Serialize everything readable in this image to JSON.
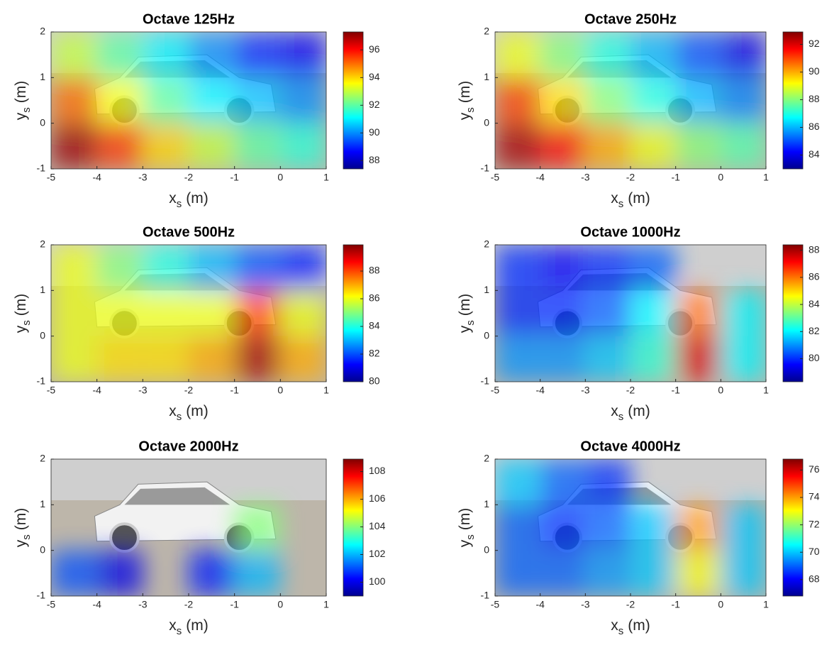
{
  "chart_data": [
    {
      "type": "heatmap",
      "title": "Octave 125Hz",
      "xlabel": [
        "x",
        "s",
        "(m)"
      ],
      "ylabel": [
        "y",
        "s",
        "(m)"
      ],
      "xlim": [
        -5,
        1
      ],
      "ylim": [
        -1,
        2
      ],
      "xticks": [
        -5,
        -4,
        -3,
        -2,
        -1,
        0,
        1
      ],
      "yticks": [
        -1,
        0,
        1,
        2
      ],
      "x": [
        -4.5,
        -3.5,
        -2.5,
        -1.5,
        -0.5,
        0.5
      ],
      "y": [
        1.5,
        0.5,
        -0.5
      ],
      "z": [
        [
          93,
          92,
          91,
          90,
          89,
          88.5
        ],
        [
          95,
          93.5,
          92,
          91,
          90.5,
          90
        ],
        [
          97,
          95.5,
          94,
          93,
          92,
          91.5
        ]
      ],
      "clim": [
        87.4,
        97.3
      ],
      "cticks": [
        88,
        90,
        92,
        94,
        96
      ],
      "colormap": "jet"
    },
    {
      "type": "heatmap",
      "title": "Octave 250Hz",
      "xlabel": [
        "x",
        "s",
        "(m)"
      ],
      "ylabel": [
        "y",
        "s",
        "(m)"
      ],
      "xlim": [
        -5,
        1
      ],
      "ylim": [
        -1,
        2
      ],
      "xticks": [
        -5,
        -4,
        -3,
        -2,
        -1,
        0,
        1
      ],
      "yticks": [
        -1,
        0,
        1,
        2
      ],
      "x": [
        -4.5,
        -3.5,
        -2.5,
        -1.5,
        -0.5,
        0.5
      ],
      "y": [
        1.5,
        0.5,
        -0.5
      ],
      "z": [
        [
          89,
          88,
          87,
          86,
          85,
          84
        ],
        [
          91,
          89.5,
          88,
          87,
          86,
          85.5
        ],
        [
          92.5,
          91.5,
          90,
          89,
          88,
          87.5
        ]
      ],
      "clim": [
        83,
        92.9
      ],
      "cticks": [
        84,
        86,
        88,
        90,
        92
      ],
      "colormap": "jet"
    },
    {
      "type": "heatmap",
      "title": "Octave 500Hz",
      "xlabel": [
        "x",
        "s",
        "(m)"
      ],
      "ylabel": [
        "y",
        "s",
        "(m)"
      ],
      "xlim": [
        -5,
        1
      ],
      "ylim": [
        -1,
        2
      ],
      "xticks": [
        -5,
        -4,
        -3,
        -2,
        -1,
        0,
        1
      ],
      "yticks": [
        -1,
        0,
        1,
        2
      ],
      "x": [
        -4.5,
        -3.5,
        -2.5,
        -1.5,
        -0.5,
        0.5
      ],
      "y": [
        1.5,
        0.5,
        -0.5
      ],
      "z": [
        [
          86,
          85,
          84,
          83,
          82,
          81.5
        ],
        [
          86,
          86,
          86,
          86,
          88,
          86
        ],
        [
          86,
          86.5,
          86.5,
          87,
          89.5,
          87
        ]
      ],
      "clim": [
        80,
        89.9
      ],
      "cticks": [
        80,
        82,
        84,
        86,
        88
      ],
      "colormap": "jet"
    },
    {
      "type": "heatmap",
      "title": "Octave 1000Hz",
      "xlabel": [
        "x",
        "s",
        "(m)"
      ],
      "ylabel": [
        "y",
        "s",
        "(m)"
      ],
      "xlim": [
        -5,
        1
      ],
      "ylim": [
        -1,
        2
      ],
      "xticks": [
        -5,
        -4,
        -3,
        -2,
        -1,
        0,
        1
      ],
      "yticks": [
        -1,
        0,
        1,
        2
      ],
      "x": [
        -4.5,
        -3.5,
        -2.5,
        -1.5,
        -0.5,
        0.5
      ],
      "y": [
        1.5,
        0.5,
        -0.5
      ],
      "z": [
        [
          80,
          79.5,
          80,
          80.5,
          null,
          null
        ],
        [
          80,
          80,
          80.5,
          82,
          86,
          82
        ],
        [
          81,
          81,
          81.5,
          82.5,
          87.5,
          82
        ]
      ],
      "clim": [
        78.3,
        88.4
      ],
      "cticks": [
        80,
        82,
        84,
        86,
        88
      ],
      "colormap": "jet"
    },
    {
      "type": "heatmap",
      "title": "Octave 2000Hz",
      "xlabel": [
        "x",
        "s",
        "(m)"
      ],
      "ylabel": [
        "y",
        "s",
        "(m)"
      ],
      "xlim": [
        -5,
        1
      ],
      "ylim": [
        -1,
        2
      ],
      "xticks": [
        -5,
        -4,
        -3,
        -2,
        -1,
        0,
        1
      ],
      "yticks": [
        -1,
        0,
        1,
        2
      ],
      "x": [
        -4.5,
        -3.5,
        -2.5,
        -1.5,
        -0.5,
        0.5
      ],
      "y": [
        1.5,
        0.5,
        -0.5
      ],
      "z": [
        [
          null,
          null,
          null,
          null,
          null,
          null
        ],
        [
          null,
          null,
          null,
          null,
          104,
          null
        ],
        [
          101,
          100,
          null,
          100.5,
          102,
          null
        ]
      ],
      "clim": [
        99,
        108.9
      ],
      "cticks": [
        100,
        102,
        104,
        106,
        108
      ],
      "colormap": "jet"
    },
    {
      "type": "heatmap",
      "title": "Octave 4000Hz",
      "xlabel": [
        "x",
        "s",
        "(m)"
      ],
      "ylabel": [
        "y",
        "s",
        "(m)"
      ],
      "xlim": [
        -5,
        1
      ],
      "ylim": [
        -1,
        2
      ],
      "xticks": [
        -5,
        -4,
        -3,
        -2,
        -1,
        0,
        1
      ],
      "yticks": [
        -1,
        0,
        1,
        2
      ],
      "x": [
        -4.5,
        -3.5,
        -2.5,
        -1.5,
        -0.5,
        0.5
      ],
      "y": [
        1.5,
        0.5,
        -0.5
      ],
      "z": [
        [
          70,
          69,
          68.5,
          null,
          null,
          null
        ],
        [
          69,
          68.5,
          69,
          70,
          74,
          70
        ],
        [
          69,
          69,
          69.5,
          70,
          73,
          70
        ]
      ],
      "clim": [
        66.8,
        76.8
      ],
      "cticks": [
        68,
        70,
        72,
        74,
        76
      ],
      "colormap": "jet"
    }
  ]
}
